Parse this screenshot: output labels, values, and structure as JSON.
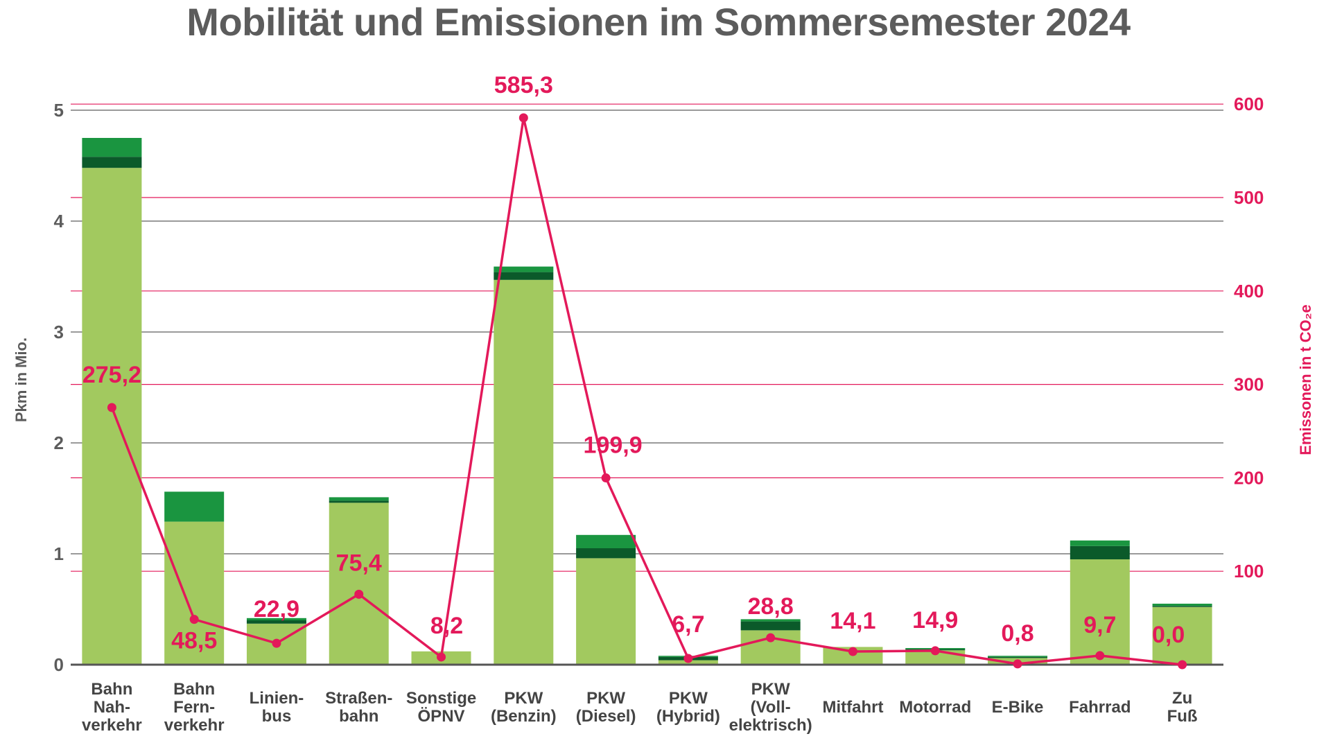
{
  "chart_data": {
    "type": "bar",
    "title": "Mobilität und Emissionen im Sommersemester 2024",
    "ylabel_left": "Pkm in Mio.",
    "ylabel_right": "Emissonen in t CO₂e",
    "ylim_left": [
      0,
      5
    ],
    "ylim_right": [
      0,
      600
    ],
    "yticks_left": [
      "0",
      "1",
      "2",
      "3",
      "4",
      "5"
    ],
    "yticks_right": [
      "100",
      "200",
      "300",
      "400",
      "500",
      "600"
    ],
    "grid": true,
    "categories": [
      "Bahn Nah- verkehr",
      "Bahn Fern- verkehr",
      "Linien- bus",
      "Straßen- bahn",
      "Sonstige ÖPNV",
      "PKW (Benzin)",
      "PKW (Diesel)",
      "PKW (Hybrid)",
      "PKW (Voll- elektrisch)",
      "Mitfahrt",
      "Motorrad",
      "E-Bike",
      "Fahrrad",
      "Zu Fuß"
    ],
    "category_lines": [
      [
        "Bahn",
        "Nah-",
        "verkehr"
      ],
      [
        "Bahn",
        "Fern-",
        "verkehr"
      ],
      [
        "Linien-",
        "bus"
      ],
      [
        "Straßen-",
        "bahn"
      ],
      [
        "Sonstige",
        "ÖPNV"
      ],
      [
        "PKW",
        "(Benzin)"
      ],
      [
        "PKW",
        "(Diesel)"
      ],
      [
        "PKW",
        "(Hybrid)"
      ],
      [
        "PKW",
        "(Voll-",
        "elektrisch)"
      ],
      [
        "Mitfahrt"
      ],
      [
        "Motorrad"
      ],
      [
        "E-Bike"
      ],
      [
        "Fahrrad"
      ],
      [
        "Zu",
        "Fuß"
      ]
    ],
    "series": [
      {
        "values": [
          4.48,
          1.29,
          0.37,
          1.46,
          0.12,
          3.47,
          0.96,
          0.04,
          0.31,
          0.16,
          0.13,
          0.06,
          0.95,
          0.52
        ],
        "color": "#a2c95f"
      },
      {
        "values": [
          0.1,
          0.0,
          0.03,
          0.02,
          0.0,
          0.07,
          0.09,
          0.03,
          0.08,
          0.0,
          0.01,
          0.01,
          0.12,
          0.01
        ],
        "color": "#0b5a2a"
      },
      {
        "values": [
          0.17,
          0.27,
          0.02,
          0.03,
          0.0,
          0.05,
          0.12,
          0.01,
          0.02,
          0.0,
          0.01,
          0.01,
          0.05,
          0.02
        ],
        "color": "#1a9540"
      }
    ],
    "line_series": {
      "values": [
        275.2,
        48.5,
        22.9,
        75.4,
        8.2,
        585.3,
        199.9,
        6.7,
        28.8,
        14.1,
        14.9,
        0.8,
        9.7,
        0.0
      ],
      "labels": [
        "275,2",
        "48,5",
        "22,9",
        "75,4",
        "8,2",
        "585,3",
        "199,9",
        "6,7",
        "28,8",
        "14,1",
        "14,9",
        "0,8",
        "9,7",
        "0,0"
      ],
      "color": "#e3195a"
    },
    "colors": {
      "left_axis": "#5c5c5c",
      "right_axis": "#e3195a",
      "grid_left": "#9a9a9a",
      "grid_right": "#e3195a"
    }
  }
}
